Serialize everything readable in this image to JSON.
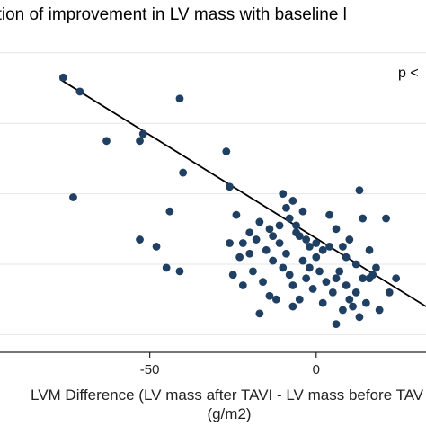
{
  "chart_data": {
    "type": "scatter",
    "title": "ation of improvement in LV mass with baseline l",
    "annotation": "p <",
    "xlabel": "LVM Difference (LV mass after TAVI - LV mass before TAV",
    "xlabel_unit": "(g/m2)",
    "x_ticks": [
      -50,
      0
    ],
    "x_tick_labels": [
      "-50",
      "0"
    ],
    "xlim": [
      -95,
      33
    ],
    "ylim": [
      0,
      100
    ],
    "y_ticks": [
      5,
      25,
      45,
      65,
      85
    ],
    "grid": true,
    "colors": {
      "points": "#1f3f63",
      "fit_line": "#000000",
      "grid": "#e6e6e6"
    },
    "fit_line": {
      "x": [
        -77,
        33
      ],
      "y": [
        77.5,
        13
      ]
    },
    "points": [
      {
        "x": -76,
        "y": 78
      },
      {
        "x": -71,
        "y": 74
      },
      {
        "x": -73,
        "y": 44
      },
      {
        "x": -63,
        "y": 60
      },
      {
        "x": -53,
        "y": 60
      },
      {
        "x": -52,
        "y": 62
      },
      {
        "x": -41,
        "y": 72
      },
      {
        "x": -40,
        "y": 51
      },
      {
        "x": -44,
        "y": 40
      },
      {
        "x": -53,
        "y": 32
      },
      {
        "x": -48,
        "y": 30
      },
      {
        "x": -45,
        "y": 24
      },
      {
        "x": -41,
        "y": 23
      },
      {
        "x": -27,
        "y": 57
      },
      {
        "x": -26,
        "y": 47
      },
      {
        "x": -24,
        "y": 39
      },
      {
        "x": -26,
        "y": 31
      },
      {
        "x": -22,
        "y": 31
      },
      {
        "x": -20,
        "y": 34
      },
      {
        "x": -18,
        "y": 32
      },
      {
        "x": -17,
        "y": 37
      },
      {
        "x": -14,
        "y": 35
      },
      {
        "x": -13,
        "y": 33
      },
      {
        "x": -11,
        "y": 31
      },
      {
        "x": -10,
        "y": 45
      },
      {
        "x": -9,
        "y": 41
      },
      {
        "x": -8,
        "y": 38
      },
      {
        "x": -7,
        "y": 43
      },
      {
        "x": -6,
        "y": 36
      },
      {
        "x": -5,
        "y": 33
      },
      {
        "x": -3,
        "y": 32
      },
      {
        "x": -2,
        "y": 30
      },
      {
        "x": 0,
        "y": 31
      },
      {
        "x": 2,
        "y": 29
      },
      {
        "x": 4,
        "y": 39
      },
      {
        "x": 6,
        "y": 35
      },
      {
        "x": 8,
        "y": 30
      },
      {
        "x": 10,
        "y": 32
      },
      {
        "x": 13,
        "y": 46
      },
      {
        "x": 14,
        "y": 38
      },
      {
        "x": 16,
        "y": 29
      },
      {
        "x": 18,
        "y": 24
      },
      {
        "x": 21,
        "y": 38
      },
      {
        "x": 24,
        "y": 21
      },
      {
        "x": -23,
        "y": 27
      },
      {
        "x": -22,
        "y": 19
      },
      {
        "x": -19,
        "y": 23
      },
      {
        "x": -16,
        "y": 20
      },
      {
        "x": -14,
        "y": 16
      },
      {
        "x": -13,
        "y": 26
      },
      {
        "x": -10,
        "y": 24
      },
      {
        "x": -8,
        "y": 22
      },
      {
        "x": -7,
        "y": 19
      },
      {
        "x": -5,
        "y": 15
      },
      {
        "x": -4,
        "y": 26
      },
      {
        "x": -3,
        "y": 21
      },
      {
        "x": -1,
        "y": 18
      },
      {
        "x": 1,
        "y": 23
      },
      {
        "x": 3,
        "y": 20
      },
      {
        "x": 5,
        "y": 17
      },
      {
        "x": 6,
        "y": 21
      },
      {
        "x": 7,
        "y": 23
      },
      {
        "x": 9,
        "y": 19
      },
      {
        "x": 10,
        "y": 15
      },
      {
        "x": 12,
        "y": 17
      },
      {
        "x": 14,
        "y": 21
      },
      {
        "x": 15,
        "y": 14
      },
      {
        "x": 17,
        "y": 22
      },
      {
        "x": 19,
        "y": 12
      },
      {
        "x": 22,
        "y": 17
      },
      {
        "x": 8,
        "y": 12
      },
      {
        "x": 11,
        "y": 13
      },
      {
        "x": 6,
        "y": 8
      },
      {
        "x": -12,
        "y": 15
      },
      {
        "x": -9,
        "y": 28
      },
      {
        "x": -15,
        "y": 29
      },
      {
        "x": -6,
        "y": 34
      },
      {
        "x": -11,
        "y": 36
      },
      {
        "x": -4,
        "y": 40
      },
      {
        "x": 0,
        "y": 27
      },
      {
        "x": 12,
        "y": 25
      },
      {
        "x": -20,
        "y": 28
      },
      {
        "x": -25,
        "y": 22
      },
      {
        "x": 4,
        "y": 30
      },
      {
        "x": 16,
        "y": 21
      },
      {
        "x": -2,
        "y": 24
      },
      {
        "x": 9,
        "y": 27
      },
      {
        "x": -17,
        "y": 11
      },
      {
        "x": -7,
        "y": 13
      },
      {
        "x": 13,
        "y": 10
      },
      {
        "x": 2,
        "y": 14
      }
    ]
  }
}
